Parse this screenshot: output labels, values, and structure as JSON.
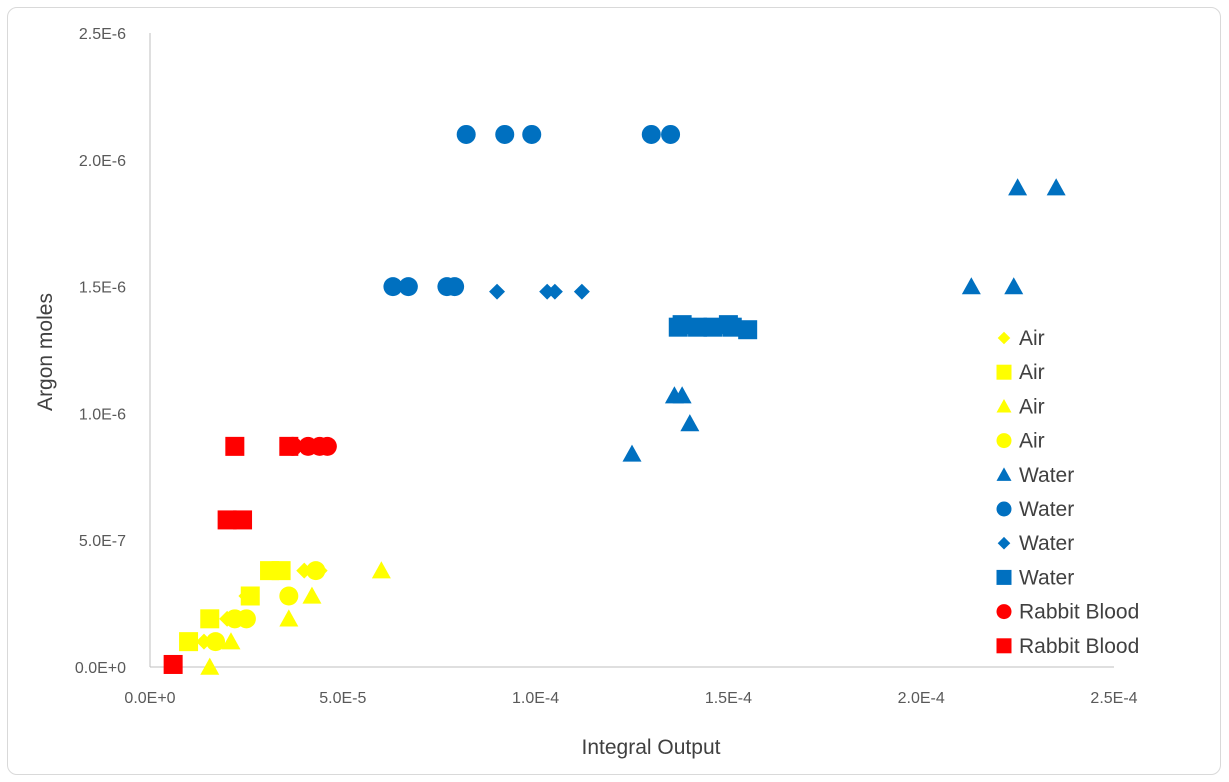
{
  "chart_data": {
    "type": "scatter",
    "title": "",
    "xlabel": "Integral Output",
    "ylabel": "Argon moles",
    "xlim": [
      0,
      0.00025
    ],
    "ylim": [
      0,
      2.5e-06
    ],
    "x_ticks": [
      0,
      5e-05,
      0.0001,
      0.00015,
      0.0002,
      0.00025
    ],
    "x_tick_labels": [
      "0.0E+0",
      "5.0E-5",
      "1.0E-4",
      "1.5E-4",
      "2.0E-4",
      "2.5E-4"
    ],
    "y_ticks": [
      0,
      5e-07,
      1e-06,
      1.5e-06,
      2e-06,
      2.5e-06
    ],
    "y_tick_labels": [
      "0.0E+0",
      "5.0E-7",
      "1.0E-6",
      "1.5E-6",
      "2.0E-6",
      "2.5E-6"
    ],
    "grid": false,
    "legend_position": "right",
    "series": [
      {
        "name": "Air",
        "marker": "diamond",
        "color": "#FFFF00",
        "points": [
          [
            1.4e-05,
            1e-07
          ],
          [
            2e-05,
            1.9e-07
          ],
          [
            2.5e-05,
            2.8e-07
          ],
          [
            4e-05,
            3.8e-07
          ],
          [
            4.4e-05,
            3.8e-07
          ]
        ]
      },
      {
        "name": "Air",
        "marker": "square",
        "color": "#FFFF00",
        "points": [
          [
            1e-05,
            1e-07
          ],
          [
            1.55e-05,
            1.9e-07
          ],
          [
            2.6e-05,
            2.8e-07
          ],
          [
            3.1e-05,
            3.8e-07
          ],
          [
            3.4e-05,
            3.8e-07
          ]
        ]
      },
      {
        "name": "Air",
        "marker": "triangle",
        "color": "#FFFF00",
        "points": [
          [
            1.55e-05,
            0.0
          ],
          [
            2.1e-05,
            1e-07
          ],
          [
            3.6e-05,
            1.9e-07
          ],
          [
            4.2e-05,
            2.8e-07
          ],
          [
            6e-05,
            3.8e-07
          ]
        ]
      },
      {
        "name": "Air",
        "marker": "circle",
        "color": "#FFFF00",
        "points": [
          [
            1.7e-05,
            1e-07
          ],
          [
            2.2e-05,
            1.9e-07
          ],
          [
            2.5e-05,
            1.9e-07
          ],
          [
            3.6e-05,
            2.8e-07
          ],
          [
            4.3e-05,
            3.8e-07
          ]
        ]
      },
      {
        "name": "Water",
        "marker": "triangle",
        "color": "#0070C0",
        "points": [
          [
            0.000125,
            8.4e-07
          ],
          [
            0.000136,
            1.07e-06
          ],
          [
            0.000138,
            1.07e-06
          ],
          [
            0.00014,
            9.6e-07
          ],
          [
            0.000213,
            1.5e-06
          ],
          [
            0.000224,
            1.5e-06
          ],
          [
            0.000225,
            1.89e-06
          ],
          [
            0.000235,
            1.89e-06
          ]
        ]
      },
      {
        "name": "Water",
        "marker": "circle",
        "color": "#0070C0",
        "points": [
          [
            6.3e-05,
            1.5e-06
          ],
          [
            6.7e-05,
            1.5e-06
          ],
          [
            7.7e-05,
            1.5e-06
          ],
          [
            7.9e-05,
            1.5e-06
          ],
          [
            8.2e-05,
            2.1e-06
          ],
          [
            9.2e-05,
            2.1e-06
          ],
          [
            9.9e-05,
            2.1e-06
          ],
          [
            0.00013,
            2.1e-06
          ],
          [
            0.000135,
            2.1e-06
          ]
        ]
      },
      {
        "name": "Water",
        "marker": "diamond",
        "color": "#0070C0",
        "points": [
          [
            9e-05,
            1.48e-06
          ],
          [
            0.000103,
            1.48e-06
          ],
          [
            0.000105,
            1.48e-06
          ],
          [
            0.000112,
            1.48e-06
          ]
        ]
      },
      {
        "name": "Water",
        "marker": "square",
        "color": "#0070C0",
        "points": [
          [
            0.000137,
            1.34e-06
          ],
          [
            0.000138,
            1.35e-06
          ],
          [
            0.000142,
            1.34e-06
          ],
          [
            0.000146,
            1.34e-06
          ],
          [
            0.00015,
            1.35e-06
          ],
          [
            0.000151,
            1.34e-06
          ],
          [
            0.000155,
            1.33e-06
          ]
        ]
      },
      {
        "name": "Rabbit Blood",
        "marker": "circle",
        "color": "#FF0000",
        "points": [
          [
            3.7e-05,
            8.7e-07
          ],
          [
            4.1e-05,
            8.7e-07
          ],
          [
            4.4e-05,
            8.7e-07
          ],
          [
            4.6e-05,
            8.7e-07
          ]
        ]
      },
      {
        "name": "Rabbit Blood",
        "marker": "square",
        "color": "#FF0000",
        "points": [
          [
            6e-06,
            1e-08
          ],
          [
            2e-05,
            5.8e-07
          ],
          [
            2.2e-05,
            8.7e-07
          ],
          [
            2.4e-05,
            5.8e-07
          ],
          [
            3.6e-05,
            8.7e-07
          ]
        ]
      }
    ]
  }
}
